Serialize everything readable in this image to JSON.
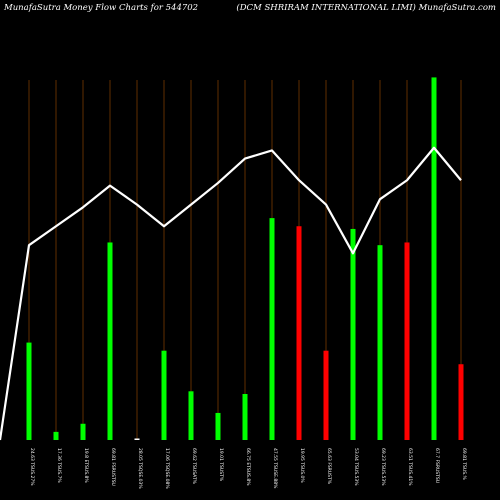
{
  "header": {
    "left": "MunafaSutra  Money Flow  Charts for 544702",
    "right": "(DCM SHRIRAM INTERNATIONAL  LIMI) MunafaSutra.com"
  },
  "chart_data": {
    "type": "bar",
    "title": "MunafaSutra Money Flow Charts for 544702",
    "categories": [
      "24.63 TSUS.27%",
      "17.36 TSUS.7%",
      "19.8 ETSUS.8%",
      "69.81 FSRUSTSU",
      "28.05 TSQSE.03%",
      "17.06 TSQSE.08%",
      "69.62 TSUSAT%",
      "19.01 TSUST%",
      "66.75 ETSUS.8%",
      "47.55 TSUSE.88%",
      "19.95 TSUS.0%",
      "65.63 FSRUST%",
      "53.04 TSUS.53%",
      "69.23 TSUS.53%",
      "63.51 TSUS.41%",
      "67.7 FSRUSTSU",
      "69.81 TSUS.%"
    ],
    "bar_values": [
      36,
      3,
      6,
      73,
      0.5,
      33,
      18,
      10,
      17,
      82,
      79,
      33,
      78,
      72,
      73,
      134,
      28
    ],
    "bar_colors": [
      "#00ff00",
      "#00ff00",
      "#00ff00",
      "#00ff00",
      "#ffffff",
      "#00ff00",
      "#00ff00",
      "#00ff00",
      "#00ff00",
      "#00ff00",
      "#ff0000",
      "#ff0000",
      "#00ff00",
      "#00ff00",
      "#ff0000",
      "#00ff00",
      "#ff0000"
    ],
    "line_values": [
      72,
      79,
      86,
      94,
      87,
      79,
      87,
      95,
      104,
      107,
      96,
      87,
      69,
      89,
      96,
      108,
      96
    ],
    "line_color": "#ffffff",
    "grid_color": "#7a3a00",
    "ylim": [
      0,
      136
    ]
  }
}
